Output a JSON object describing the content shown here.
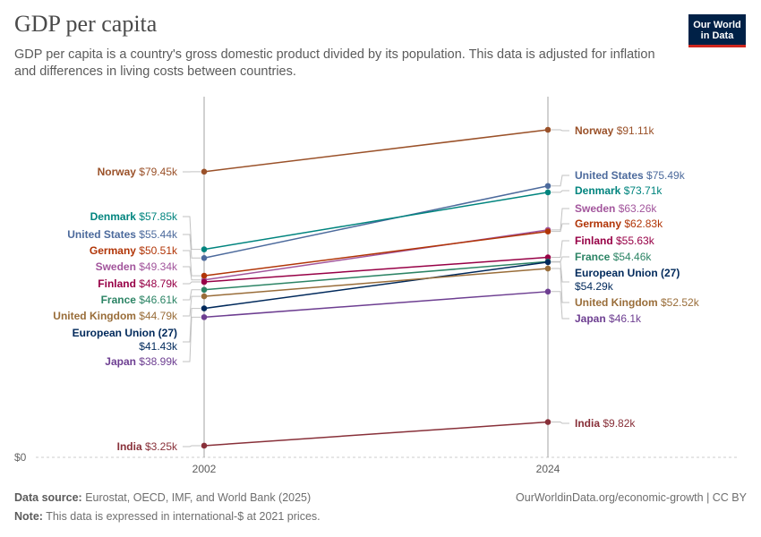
{
  "header": {
    "title": "GDP per capita",
    "subtitle": "GDP per capita is a country's gross domestic product divided by its population. This data is adjusted for inflation and differences in living costs between countries.",
    "logo_line1": "Our World",
    "logo_line2": "in Data"
  },
  "footer": {
    "source_label": "Data source:",
    "source_text": "Eurostat, OECD, IMF, and World Bank (2025)",
    "note_label": "Note:",
    "note_text": "This data is expressed in international-$ at 2021 prices.",
    "url": "OurWorldinData.org/economic-growth | CC BY"
  },
  "chart_data": {
    "type": "line",
    "title": "GDP per capita",
    "x": [
      "2002",
      "2024"
    ],
    "y_tick_labels": [
      "$0"
    ],
    "ylim": [
      0,
      95000
    ],
    "series": [
      {
        "name": "Norway",
        "values": [
          79450,
          91110
        ],
        "labels": [
          "$79.45k",
          "$91.11k"
        ],
        "color": "#9a5129"
      },
      {
        "name": "United States",
        "values": [
          55440,
          75490
        ],
        "labels": [
          "$55.44k",
          "$75.49k"
        ],
        "color": "#4c6a9c"
      },
      {
        "name": "Denmark",
        "values": [
          57850,
          73710
        ],
        "labels": [
          "$57.85k",
          "$73.71k"
        ],
        "color": "#00847e"
      },
      {
        "name": "Sweden",
        "values": [
          49340,
          63260
        ],
        "labels": [
          "$49.34k",
          "$63.26k"
        ],
        "color": "#a2559c"
      },
      {
        "name": "Germany",
        "values": [
          50510,
          62830
        ],
        "labels": [
          "$50.51k",
          "$62.83k"
        ],
        "color": "#b13507"
      },
      {
        "name": "Finland",
        "values": [
          48790,
          55630
        ],
        "labels": [
          "$48.79k",
          "$55.63k"
        ],
        "color": "#970046"
      },
      {
        "name": "France",
        "values": [
          46610,
          54460
        ],
        "labels": [
          "$46.61k",
          "$54.46k"
        ],
        "color": "#2c8465"
      },
      {
        "name": "European Union (27)",
        "values": [
          41430,
          54290
        ],
        "labels": [
          "$41.43k",
          "$54.29k"
        ],
        "color": "#00295b"
      },
      {
        "name": "United Kingdom",
        "values": [
          44790,
          52520
        ],
        "labels": [
          "$44.79k",
          "$52.52k"
        ],
        "color": "#996d39"
      },
      {
        "name": "Japan",
        "values": [
          38990,
          46100
        ],
        "labels": [
          "$38.99k",
          "$46.1k"
        ],
        "color": "#6d3e91"
      },
      {
        "name": "India",
        "values": [
          3250,
          9820
        ],
        "labels": [
          "$3.25k",
          "$9.82k"
        ],
        "color": "#883039"
      }
    ]
  }
}
